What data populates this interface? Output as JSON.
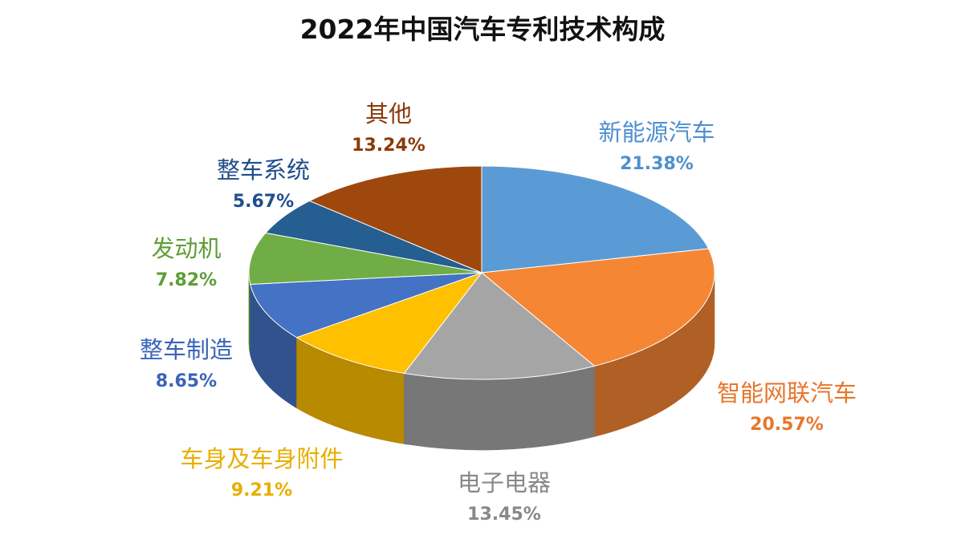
{
  "chart_data": {
    "type": "pie",
    "title": "2022年中国汽车专利技术构成",
    "slices": [
      {
        "label": "新能源汽车",
        "value": 21.38,
        "value_label": "21.38%",
        "color": "#5B9BD5",
        "label_color": "#4E8FD0"
      },
      {
        "label": "智能网联汽车",
        "value": 20.57,
        "value_label": "20.57%",
        "color": "#F58634",
        "label_color": "#E8762C"
      },
      {
        "label": "电子电器",
        "value": 13.45,
        "value_label": "13.45%",
        "color": "#A5A5A5",
        "label_color": "#888888"
      },
      {
        "label": "车身及车身附件",
        "value": 9.21,
        "value_label": "9.21%",
        "color": "#FFC000",
        "label_color": "#E8AE00"
      },
      {
        "label": "整车制造",
        "value": 8.65,
        "value_label": "8.65%",
        "color": "#4472C4",
        "label_color": "#3A64B8"
      },
      {
        "label": "发动机",
        "value": 7.82,
        "value_label": "7.82%",
        "color": "#70AD47",
        "label_color": "#5E9E35"
      },
      {
        "label": "整车系统",
        "value": 5.67,
        "value_label": "5.67%",
        "color": "#255E91",
        "label_color": "#1F4E8A"
      },
      {
        "label": "其他",
        "value": 13.24,
        "value_label": "13.24%",
        "color": "#9E480E",
        "label_color": "#8B3A0A"
      }
    ]
  }
}
